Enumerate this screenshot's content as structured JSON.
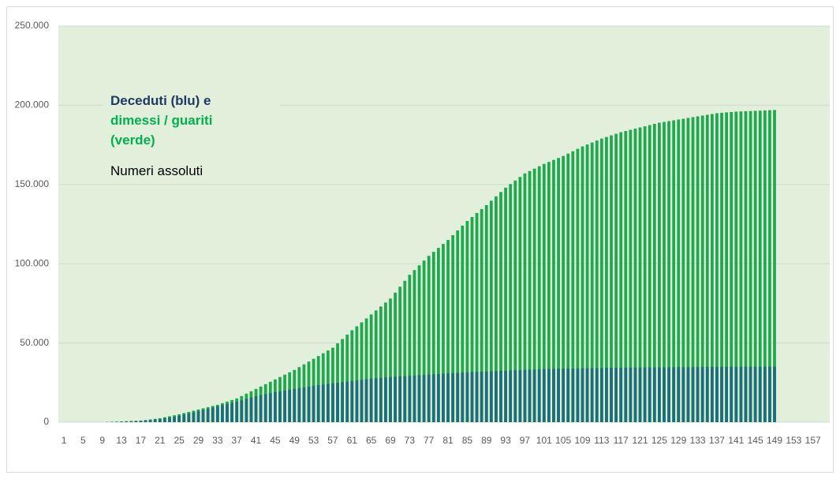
{
  "chart_data": {
    "type": "bar",
    "title_lines": [
      {
        "text": "Deceduti (blu) e",
        "color": "#203864"
      },
      {
        "text": "dimessi / guariti",
        "color": "#00b050"
      },
      {
        "text": "(verde)",
        "color": "#00b050"
      }
    ],
    "subtitle": "Numeri assoluti",
    "categories": [
      1,
      null,
      null,
      null,
      5,
      null,
      null,
      null,
      9,
      null,
      null,
      null,
      13,
      null,
      null,
      null,
      17,
      null,
      null,
      null,
      21,
      null,
      null,
      null,
      25,
      null,
      null,
      null,
      29,
      null,
      null,
      null,
      33,
      null,
      null,
      null,
      37,
      null,
      null,
      null,
      41,
      null,
      null,
      null,
      45,
      null,
      null,
      null,
      49,
      null,
      null,
      null,
      53,
      null,
      null,
      null,
      57,
      null,
      null,
      null,
      61,
      null,
      null,
      null,
      65,
      null,
      null,
      null,
      69,
      null,
      null,
      null,
      73,
      null,
      null,
      null,
      77,
      null,
      null,
      null,
      81,
      null,
      null,
      null,
      85,
      null,
      null,
      null,
      89,
      null,
      null,
      null,
      93,
      null,
      null,
      null,
      97,
      null,
      null,
      null,
      101,
      null,
      null,
      null,
      105,
      null,
      null,
      null,
      109,
      null,
      null,
      null,
      113,
      null,
      null,
      null,
      117,
      null,
      null,
      null,
      121,
      null,
      null,
      null,
      125,
      null,
      null,
      null,
      129,
      null,
      null,
      null,
      133,
      null,
      null,
      null,
      137,
      null,
      null,
      null,
      141,
      null,
      null,
      null,
      145,
      null,
      null,
      null,
      149,
      null,
      null,
      null,
      153,
      null,
      null,
      null,
      157,
      null,
      null,
      null
    ],
    "series": [
      {
        "color": "#1fa84f",
        "values": [
          0,
          0,
          0,
          0,
          0,
          0,
          0,
          0,
          0,
          125,
          250,
          375,
          500,
          625,
          750,
          875,
          1000,
          1375,
          1750,
          2125,
          2500,
          3125,
          3750,
          4375,
          5000,
          5750,
          6500,
          7250,
          8000,
          8750,
          9500,
          10250,
          11000,
          12000,
          13000,
          14000,
          15000,
          16500,
          18000,
          19500,
          21000,
          22500,
          24000,
          25500,
          27000,
          28500,
          30000,
          31500,
          33000,
          34750,
          36500,
          38250,
          40000,
          41750,
          43500,
          45250,
          47000,
          49750,
          52500,
          55250,
          58000,
          60500,
          63000,
          65500,
          68000,
          70500,
          73000,
          75500,
          78000,
          81750,
          85500,
          89250,
          93000,
          96000,
          99000,
          102000,
          105000,
          107500,
          110000,
          112500,
          115000,
          118000,
          121000,
          124000,
          127000,
          129500,
          132000,
          134500,
          137000,
          139750,
          142500,
          145250,
          148000,
          150250,
          152500,
          154750,
          157000,
          158500,
          160000,
          161500,
          163000,
          164250,
          165500,
          166750,
          168000,
          169500,
          171000,
          172500,
          174000,
          175250,
          176500,
          177750,
          179000,
          180000,
          181000,
          182000,
          183000,
          183750,
          184500,
          185250,
          186000,
          186750,
          187500,
          188250,
          189000,
          189500,
          190000,
          190500,
          191000,
          191500,
          192000,
          192500,
          193000,
          193500,
          194000,
          194500,
          195000,
          195250,
          195500,
          195750,
          196000,
          196125,
          196250,
          196375,
          196500,
          196625,
          196750,
          196875,
          197000,
          null,
          null,
          null,
          null,
          null,
          null,
          null,
          null,
          null,
          null,
          null
        ]
      },
      {
        "color": "#1b6f7a",
        "values": [
          0,
          0,
          0,
          0,
          0,
          0,
          0,
          0,
          0,
          75,
          150,
          225,
          300,
          425,
          550,
          675,
          800,
          1100,
          1400,
          1700,
          2000,
          2500,
          3000,
          3500,
          4000,
          4750,
          5500,
          6250,
          7000,
          7750,
          8500,
          9250,
          10000,
          10750,
          11500,
          12250,
          13000,
          13875,
          14750,
          15625,
          16500,
          17125,
          17750,
          18375,
          19000,
          19500,
          20000,
          20500,
          21000,
          21500,
          22000,
          22500,
          23000,
          23375,
          23750,
          24125,
          24500,
          24875,
          25250,
          25625,
          26000,
          26375,
          26750,
          27125,
          27500,
          27750,
          28000,
          28250,
          28500,
          28700,
          28900,
          29100,
          29300,
          29475,
          29650,
          29825,
          30000,
          30200,
          30400,
          30600,
          30800,
          30975,
          31150,
          31325,
          31500,
          31625,
          31750,
          31875,
          32000,
          32125,
          32250,
          32375,
          32500,
          32625,
          32750,
          32875,
          33000,
          33125,
          33250,
          33375,
          33500,
          33575,
          33650,
          33725,
          33800,
          33850,
          33900,
          33950,
          34000,
          34050,
          34100,
          34150,
          34200,
          34250,
          34300,
          34350,
          34400,
          34425,
          34450,
          34475,
          34500,
          34525,
          34550,
          34575,
          34600,
          34625,
          34650,
          34675,
          34700,
          34725,
          34750,
          34775,
          34800,
          34825,
          34850,
          34875,
          34900,
          34910,
          34925,
          34940,
          34950,
          34960,
          34975,
          34990,
          35000,
          35010,
          35025,
          35040,
          35050,
          null,
          null,
          null,
          null,
          null,
          null,
          null,
          null,
          null,
          null,
          null
        ]
      }
    ],
    "ylim": [
      0,
      250000
    ],
    "yticks": [
      0,
      {
        "value": 50000,
        "label": "50.000"
      },
      {
        "value": 100000,
        "label": "100.000"
      },
      {
        "value": 150000,
        "label": "150.000"
      },
      {
        "value": 200000,
        "label": "200.000"
      },
      {
        "value": 250000,
        "label": "250.000"
      }
    ],
    "grid": true,
    "background": "#e2efda"
  }
}
